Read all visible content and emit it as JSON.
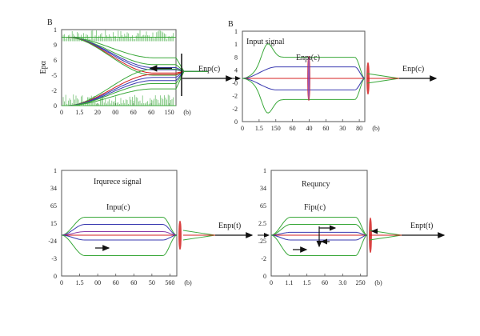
{
  "figure": {
    "description": "Four-panel schematic signal plots with curves converging to a focal point and output arrows"
  },
  "colors": {
    "green": "#3aa83a",
    "blue": "#3a3ab0",
    "red": "#d42020",
    "purple": "#8a3aa8",
    "black": "#111111",
    "frame": "#555555"
  },
  "chart_data": [
    {
      "id": "panel-top-left",
      "type": "line",
      "panel_letter": "B",
      "title": "",
      "ylabel": "Epα",
      "xlabel": "",
      "y_ticks": [
        "1",
        "9",
        "6",
        "-5",
        "-2",
        "0"
      ],
      "x_ticks": [
        "0",
        "1.5",
        "20",
        "00",
        "60",
        "60",
        "150",
        "(b)"
      ],
      "annotations": [
        "Enp(c)"
      ],
      "noise_bands": [
        {
          "name": "top noise",
          "level": 9,
          "color": "green"
        },
        {
          "name": "bottom noise",
          "level": 0,
          "color": "green"
        }
      ],
      "series": [
        {
          "name": "upper-green-1",
          "color": "green",
          "start": 9,
          "end": 6.3
        },
        {
          "name": "upper-green-2",
          "color": "green",
          "start": 9,
          "end": 5.4
        },
        {
          "name": "upper-blue-1",
          "color": "blue",
          "start": 9,
          "end": 5.0
        },
        {
          "name": "upper-blue-2",
          "color": "blue",
          "start": 9,
          "end": 4.7
        },
        {
          "name": "upper-red",
          "color": "red",
          "start": 9,
          "end": 4.3
        },
        {
          "name": "upper-green-3",
          "color": "green",
          "start": 9,
          "end": 4.0
        },
        {
          "name": "lower-green-3",
          "color": "green",
          "start": 0,
          "end": 4.8
        },
        {
          "name": "lower-red",
          "color": "red",
          "start": 0,
          "end": 4.1
        },
        {
          "name": "lower-blue-2",
          "color": "blue",
          "start": 0,
          "end": 3.7
        },
        {
          "name": "lower-blue-1",
          "color": "blue",
          "start": 0,
          "end": 3.3
        },
        {
          "name": "lower-green-2",
          "color": "green",
          "start": 0,
          "end": 2.9
        },
        {
          "name": "lower-green-1",
          "color": "green",
          "start": 0,
          "end": 2.2
        }
      ],
      "ylim": [
        0,
        10
      ],
      "arrows": [
        "left arrow inside plot",
        "output arrow right"
      ]
    },
    {
      "id": "panel-top-right",
      "type": "line",
      "panel_letter": "B",
      "title": "Input signal",
      "y_ticks": [
        "1",
        "1",
        "8",
        "4",
        "-0",
        "-2",
        "-2",
        "0"
      ],
      "x_ticks": [
        "0",
        "1.5",
        "150",
        "60",
        "40",
        "60",
        "30",
        "80",
        "(b)"
      ],
      "annotations": [
        "Enpι(c)",
        "Enp(c)"
      ],
      "series": [
        {
          "name": "green-upper-pulse",
          "color": "green",
          "plateau": 0.55,
          "peak": 1.0
        },
        {
          "name": "blue-upper",
          "color": "blue",
          "plateau": 0.3
        },
        {
          "name": "red-center",
          "color": "red",
          "plateau": 0.0
        },
        {
          "name": "blue-lower",
          "color": "blue",
          "plateau": -0.3
        },
        {
          "name": "green-lower-pulse",
          "color": "green",
          "plateau": -0.55,
          "peak": -1.0
        }
      ],
      "ylim": [
        -1.2,
        1.2
      ]
    },
    {
      "id": "panel-bottom-left",
      "type": "line",
      "title": "Irqurece signal",
      "y_ticks": [
        "1",
        "34",
        "65",
        "15",
        "-24",
        "-3",
        "0"
      ],
      "x_ticks": [
        "0",
        "1.5",
        "00",
        "60",
        "60",
        "50",
        "560",
        "(b)"
      ],
      "annotations": [
        "Inpu(c)",
        "Enpι(t)"
      ],
      "series": [
        {
          "name": "green-upper",
          "color": "green",
          "plateau": 0.75
        },
        {
          "name": "blue-upper",
          "color": "blue",
          "plateau": 0.45
        },
        {
          "name": "purple-upper",
          "color": "purple",
          "plateau": 0.15
        },
        {
          "name": "red-center",
          "color": "red",
          "plateau": 0.0
        },
        {
          "name": "blue-lower",
          "color": "blue",
          "plateau": -0.2
        },
        {
          "name": "green-lower",
          "color": "green",
          "plateau": -0.85
        }
      ],
      "ylim": [
        -1.2,
        1.2
      ]
    },
    {
      "id": "panel-bottom-right",
      "type": "line",
      "title": "Requncy",
      "y_ticks": [
        "1",
        "34",
        "65",
        "2.5",
        ".25",
        "-2",
        "0"
      ],
      "x_ticks": [
        "0",
        "1.1",
        "1.5",
        "60",
        "3.0",
        "250",
        "(b)"
      ],
      "annotations": [
        "Fipι(c)",
        "Enpt(t)"
      ],
      "series": [
        {
          "name": "green-upper-1",
          "color": "green",
          "plateau": 0.75
        },
        {
          "name": "green-upper-2",
          "color": "green",
          "plateau": 0.45
        },
        {
          "name": "blue-upper",
          "color": "blue",
          "plateau": 0.12
        },
        {
          "name": "red-center",
          "color": "red",
          "plateau": 0.0
        },
        {
          "name": "blue-lower",
          "color": "blue",
          "plateau": -0.2
        },
        {
          "name": "green-lower",
          "color": "green",
          "plateau": -0.85
        }
      ],
      "ylim": [
        -1.2,
        1.2
      ]
    }
  ]
}
